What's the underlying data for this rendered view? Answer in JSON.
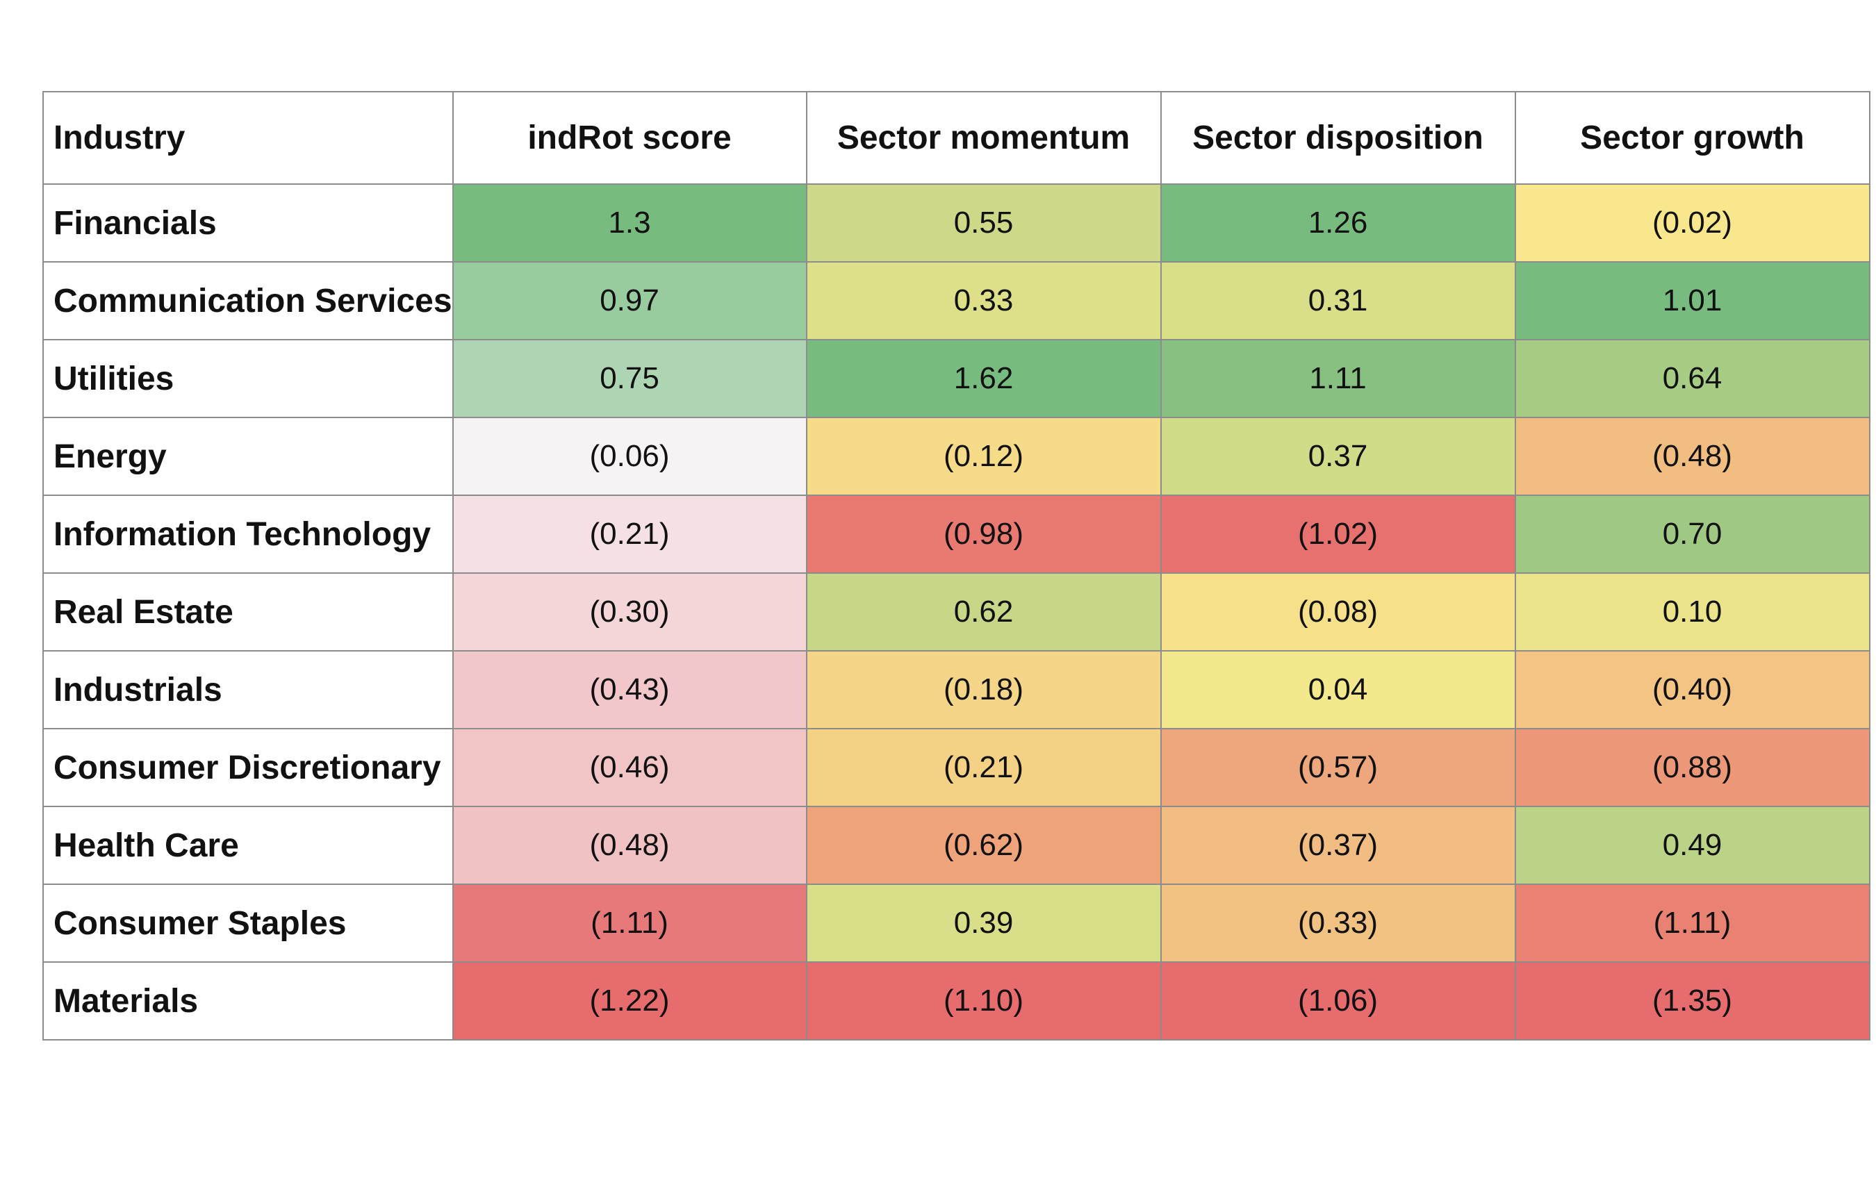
{
  "chart_data": {
    "type": "heatmap",
    "title": "",
    "corner_label": "Industry",
    "columns": [
      "indRot score",
      "Sector momentum",
      "Sector disposition",
      "Sector growth"
    ],
    "rows": [
      {
        "label": "Financials",
        "values": [
          1.3,
          0.55,
          1.26,
          -0.02
        ],
        "display": [
          "1.3",
          "0.55",
          "1.26",
          "(0.02)"
        ]
      },
      {
        "label": "Communication Services",
        "values": [
          0.97,
          0.33,
          0.31,
          1.01
        ],
        "display": [
          "0.97",
          "0.33",
          "0.31",
          "1.01"
        ]
      },
      {
        "label": "Utilities",
        "values": [
          0.75,
          1.62,
          1.11,
          0.64
        ],
        "display": [
          "0.75",
          "1.62",
          "1.11",
          "0.64"
        ]
      },
      {
        "label": "Energy",
        "values": [
          -0.06,
          -0.12,
          0.37,
          -0.48
        ],
        "display": [
          "(0.06)",
          "(0.12)",
          "0.37",
          "(0.48)"
        ]
      },
      {
        "label": "Information Technology",
        "values": [
          -0.21,
          -0.98,
          -1.02,
          0.7
        ],
        "display": [
          "(0.21)",
          "(0.98)",
          "(1.02)",
          "0.70"
        ]
      },
      {
        "label": "Real Estate",
        "values": [
          -0.3,
          0.62,
          -0.08,
          0.1
        ],
        "display": [
          "(0.30)",
          "0.62",
          "(0.08)",
          "0.10"
        ]
      },
      {
        "label": "Industrials",
        "values": [
          -0.43,
          -0.18,
          0.04,
          -0.4
        ],
        "display": [
          "(0.43)",
          "(0.18)",
          "0.04",
          "(0.40)"
        ]
      },
      {
        "label": "Consumer Discretionary",
        "values": [
          -0.46,
          -0.21,
          -0.57,
          -0.88
        ],
        "display": [
          "(0.46)",
          "(0.21)",
          "(0.57)",
          "(0.88)"
        ]
      },
      {
        "label": "Health Care",
        "values": [
          -0.48,
          -0.62,
          -0.37,
          0.49
        ],
        "display": [
          "(0.48)",
          "(0.62)",
          "(0.37)",
          "0.49"
        ]
      },
      {
        "label": "Consumer Staples",
        "values": [
          -1.11,
          0.39,
          -0.33,
          -1.11
        ],
        "display": [
          "(1.11)",
          "0.39",
          "(0.33)",
          "(1.11)"
        ]
      },
      {
        "label": "Materials",
        "values": [
          -1.22,
          -1.1,
          -1.06,
          -1.35
        ],
        "display": [
          "(1.22)",
          "(1.10)",
          "(1.06)",
          "(1.35)"
        ]
      }
    ],
    "colors": {
      "table_border": "#8c8c8c",
      "text": "#111111",
      "score_scale": {
        "high": "#78bb7f",
        "mid": "#f8f9fb",
        "low": "#e66c6e"
      },
      "factor_scale": {
        "high": "#78bb7f",
        "mid": "#f8e98c",
        "low": "#e66c6e"
      }
    }
  }
}
